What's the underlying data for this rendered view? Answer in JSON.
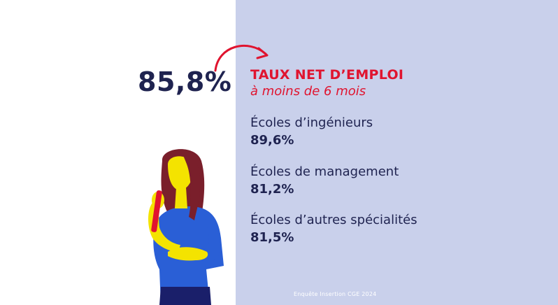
{
  "headline": {
    "value": "85,8%",
    "title": "TAUX NET D’EMPLOI",
    "subtitle": "à moins de 6 mois"
  },
  "categories": [
    {
      "label": "Écoles d’ingénieurs",
      "value": "89,6%"
    },
    {
      "label": "Écoles de management",
      "value": "81,2%"
    },
    {
      "label": "Écoles d’autres spécialités",
      "value": "81,5%"
    }
  ],
  "footer": {
    "source": "Enquête Insertion CGE 2024"
  },
  "colors": {
    "panel": "#c9d0eb",
    "accent": "#e0142f",
    "text": "#1f2350"
  },
  "illustration": {
    "subject": "woman-with-microphone"
  }
}
